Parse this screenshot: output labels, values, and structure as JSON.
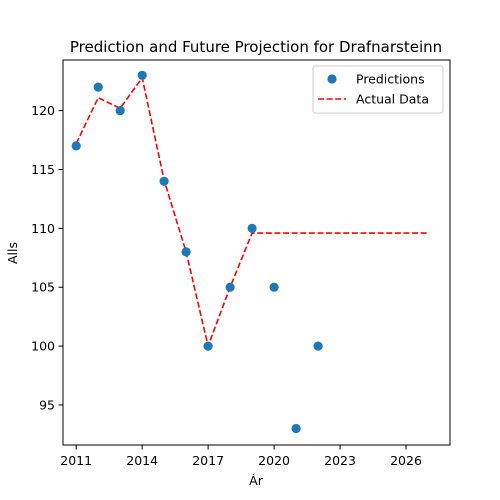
{
  "chart_data": {
    "type": "scatter",
    "title": "Prediction and Future Projection for Drafnarsteinn",
    "xlabel": "Ár",
    "ylabel": "Alls",
    "xlim": [
      2010.4,
      2028.0
    ],
    "ylim": [
      91.6,
      124.3
    ],
    "x_ticks": [
      2011,
      2014,
      2017,
      2020,
      2023,
      2026
    ],
    "y_ticks": [
      95,
      100,
      105,
      110,
      115,
      120
    ],
    "grid": false,
    "legend_position": "top-right",
    "series": [
      {
        "name": "Predictions",
        "type": "scatter",
        "color": "#1f77b4",
        "points": [
          {
            "x": 2011,
            "y": 117
          },
          {
            "x": 2012,
            "y": 122
          },
          {
            "x": 2013,
            "y": 120
          },
          {
            "x": 2014,
            "y": 123
          },
          {
            "x": 2015,
            "y": 114
          },
          {
            "x": 2016,
            "y": 108
          },
          {
            "x": 2017,
            "y": 100
          },
          {
            "x": 2018,
            "y": 105
          },
          {
            "x": 2019,
            "y": 110
          },
          {
            "x": 2020,
            "y": 105
          },
          {
            "x": 2021,
            "y": 93
          },
          {
            "x": 2022,
            "y": 100
          }
        ]
      },
      {
        "name": "Actual Data",
        "type": "line",
        "style": "dashed",
        "color": "#ff0000",
        "points": [
          {
            "x": 2011,
            "y": 117.2
          },
          {
            "x": 2012,
            "y": 121.1
          },
          {
            "x": 2013,
            "y": 120.2
          },
          {
            "x": 2014,
            "y": 122.8
          },
          {
            "x": 2015,
            "y": 114.1
          },
          {
            "x": 2016,
            "y": 108.0
          },
          {
            "x": 2017,
            "y": 100.0
          },
          {
            "x": 2018,
            "y": 105.0
          },
          {
            "x": 2019,
            "y": 109.6
          },
          {
            "x": 2020,
            "y": 109.6
          },
          {
            "x": 2021,
            "y": 109.6
          },
          {
            "x": 2022,
            "y": 109.6
          },
          {
            "x": 2023,
            "y": 109.6
          },
          {
            "x": 2024,
            "y": 109.6
          },
          {
            "x": 2025,
            "y": 109.6
          },
          {
            "x": 2026,
            "y": 109.6
          },
          {
            "x": 2027,
            "y": 109.6
          }
        ]
      }
    ]
  }
}
